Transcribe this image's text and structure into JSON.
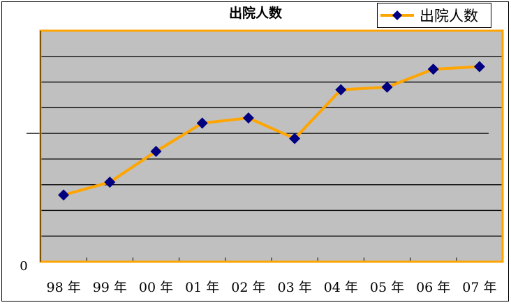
{
  "chart_data": {
    "type": "line",
    "title": "出院人数",
    "categories": [
      "98 年",
      "99 年",
      "00 年",
      "01 年",
      "02 年",
      "03 年",
      "04 年",
      "05 年",
      "06 年",
      "07 年"
    ],
    "series": [
      {
        "name": "出院人数",
        "values": [
          2.6,
          3.1,
          4.3,
          5.4,
          5.6,
          4.8,
          6.7,
          6.8,
          7.5,
          7.6
        ]
      }
    ],
    "y_tick_labels": [
      "0"
    ],
    "ylim": [
      0,
      9
    ],
    "grid": true,
    "legend": "bottom-center",
    "colors": {
      "line": "#FFA500",
      "marker": "#000080",
      "plot_bg": "#C0C0C0",
      "plot_border": "#FFA500"
    }
  }
}
